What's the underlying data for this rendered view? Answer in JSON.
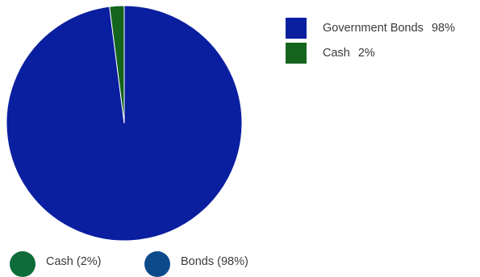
{
  "chart_data": {
    "type": "pie",
    "categories": [
      "Government Bonds",
      "Cash"
    ],
    "values": [
      98,
      2
    ],
    "colors": [
      "#0a1ea0",
      "#14641e"
    ],
    "legend": [
      {
        "label": "Government Bonds",
        "value": "98%",
        "color": "#0a1ea0"
      },
      {
        "label": "Cash",
        "value": "2%",
        "color": "#14641e"
      }
    ]
  },
  "bottom_legend": [
    {
      "label": "Cash (2%)",
      "color": "#0e6b3a"
    },
    {
      "label": "Bonds (98%)",
      "color": "#0d4a8c"
    }
  ]
}
